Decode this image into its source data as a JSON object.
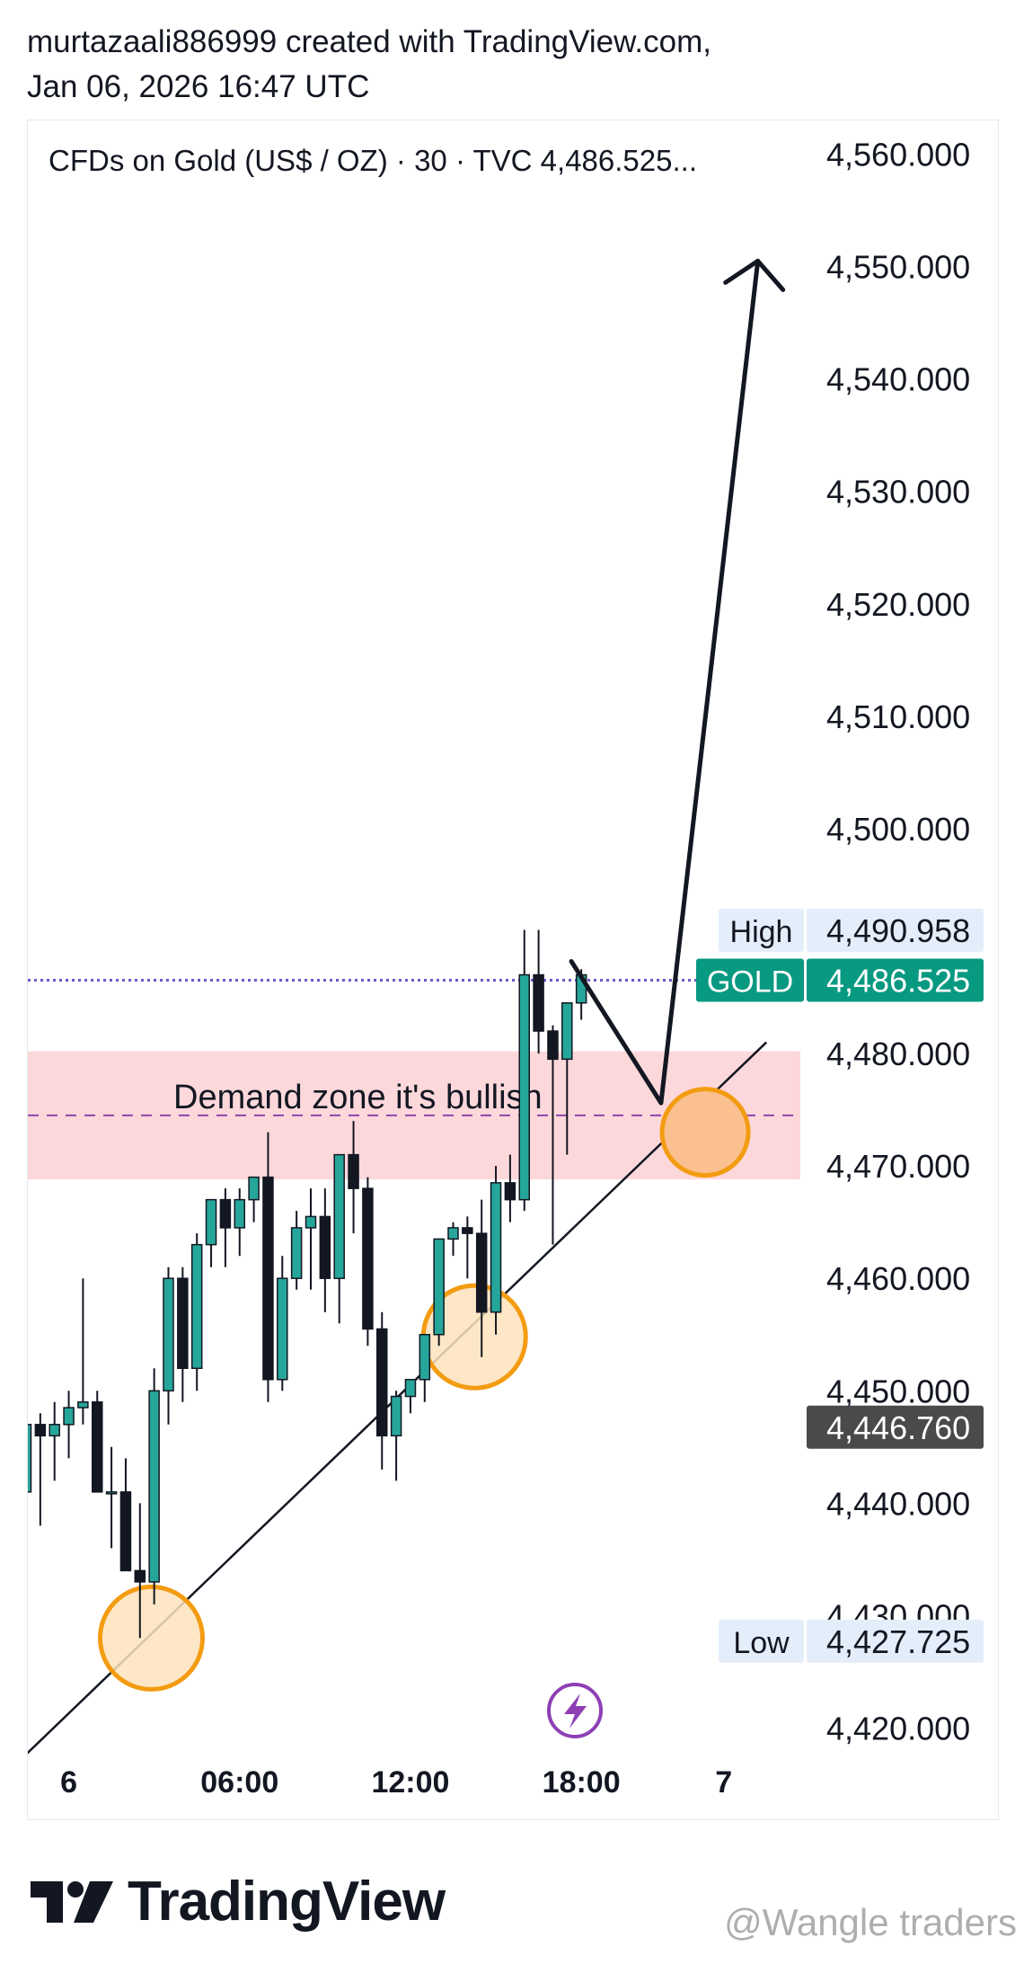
{
  "header": {
    "line1": "murtazaali886999 created with TradingView.com,",
    "line2": "Jan 06, 2026 16:47 UTC"
  },
  "chart_data": {
    "type": "candlestick",
    "title": "CFDs on Gold (US$ / OZ) · 30 · TVC  4,486.525...",
    "y_ticks": [
      "4,560.000",
      "4,550.000",
      "4,540.000",
      "4,530.000",
      "4,520.000",
      "4,510.000",
      "4,500.000",
      "4,480.000",
      "4,470.000",
      "4,460.000",
      "4,450.000",
      "4,440.000",
      "4,430.000",
      "4,420.000"
    ],
    "y_tick_values": [
      4560,
      4550,
      4540,
      4530,
      4520,
      4510,
      4500,
      4480,
      4470,
      4460,
      4450,
      4440,
      4430,
      4420
    ],
    "ylim": [
      4417,
      4563
    ],
    "x_ticks": [
      {
        "label": "6",
        "bar": 3
      },
      {
        "label": "06:00",
        "bar": 15
      },
      {
        "label": "12:00",
        "bar": 27
      },
      {
        "label": "18:00",
        "bar": 39
      },
      {
        "label": "7",
        "bar": 49
      }
    ],
    "price_labels": [
      {
        "name": "High",
        "value": "4,490.958",
        "level": 4490.958,
        "style": "light"
      },
      {
        "name": "GOLD",
        "value": "4,486.525",
        "level": 4486.525,
        "style": "green"
      },
      {
        "name": "",
        "value": "4,446.760",
        "level": 4446.76,
        "style": "gray"
      },
      {
        "name": "Low",
        "value": "4,427.725",
        "level": 4427.725,
        "style": "light"
      }
    ],
    "demand_zone": {
      "label": "Demand zone it's bullish",
      "top": 4480.2,
      "bottom": 4468.8,
      "mid": 4474.5
    },
    "last_price_level": 4486.525,
    "trendline": {
      "from": [
        -3,
        4414
      ],
      "to": [
        52,
        4481
      ]
    },
    "projection_path": [
      [
        38.3,
        4488.2
      ],
      [
        44.6,
        4475.6
      ],
      [
        51.4,
        4550.5
      ]
    ],
    "circles": [
      {
        "x": 8.8,
        "y": 4428.0,
        "style": "light"
      },
      {
        "x": 31.5,
        "y": 4454.8,
        "style": "light"
      },
      {
        "x": 47.7,
        "y": 4473.0,
        "style": "strong"
      }
    ],
    "candles": [
      {
        "o": 4441,
        "h": 4448,
        "l": 4439,
        "c": 4447
      },
      {
        "o": 4447,
        "h": 4448,
        "l": 4438,
        "c": 4446
      },
      {
        "o": 4446,
        "h": 4449,
        "l": 4442,
        "c": 4447
      },
      {
        "o": 4447,
        "h": 4450,
        "l": 4444,
        "c": 4448.5
      },
      {
        "o": 4448.5,
        "h": 4460,
        "l": 4447,
        "c": 4449
      },
      {
        "o": 4449,
        "h": 4450,
        "l": 4441,
        "c": 4441
      },
      {
        "o": 4441,
        "h": 4445,
        "l": 4436,
        "c": 4441
      },
      {
        "o": 4441,
        "h": 4444,
        "l": 4434,
        "c": 4434
      },
      {
        "o": 4434,
        "h": 4440,
        "l": 4428,
        "c": 4433
      },
      {
        "o": 4433,
        "h": 4452,
        "l": 4431,
        "c": 4450
      },
      {
        "o": 4450,
        "h": 4461,
        "l": 4447,
        "c": 4460
      },
      {
        "o": 4460,
        "h": 4461,
        "l": 4449,
        "c": 4452
      },
      {
        "o": 4452,
        "h": 4464,
        "l": 4450,
        "c": 4463
      },
      {
        "o": 4463,
        "h": 4467,
        "l": 4461,
        "c": 4467
      },
      {
        "o": 4467,
        "h": 4468,
        "l": 4461,
        "c": 4464.5
      },
      {
        "o": 4464.5,
        "h": 4468,
        "l": 4462,
        "c": 4467
      },
      {
        "o": 4467,
        "h": 4469,
        "l": 4465,
        "c": 4469
      },
      {
        "o": 4469,
        "h": 4473,
        "l": 4449,
        "c": 4451
      },
      {
        "o": 4451,
        "h": 4462,
        "l": 4450,
        "c": 4460
      },
      {
        "o": 4460,
        "h": 4466,
        "l": 4459,
        "c": 4464.5
      },
      {
        "o": 4464.5,
        "h": 4468,
        "l": 4459,
        "c": 4465.5
      },
      {
        "o": 4465.5,
        "h": 4468,
        "l": 4457,
        "c": 4460
      },
      {
        "o": 4460,
        "h": 4471,
        "l": 4456,
        "c": 4471
      },
      {
        "o": 4471,
        "h": 4474,
        "l": 4464,
        "c": 4468
      },
      {
        "o": 4468,
        "h": 4469,
        "l": 4454,
        "c": 4455.5
      },
      {
        "o": 4455.5,
        "h": 4457,
        "l": 4443,
        "c": 4446
      },
      {
        "o": 4446,
        "h": 4450,
        "l": 4442,
        "c": 4449.5
      },
      {
        "o": 4449.5,
        "h": 4451,
        "l": 4448,
        "c": 4451
      },
      {
        "o": 4451,
        "h": 4455,
        "l": 4449,
        "c": 4455
      },
      {
        "o": 4455,
        "h": 4463.5,
        "l": 4454,
        "c": 4463.5
      },
      {
        "o": 4463.5,
        "h": 4465,
        "l": 4462,
        "c": 4464.5
      },
      {
        "o": 4464.5,
        "h": 4465.5,
        "l": 4460,
        "c": 4464
      },
      {
        "o": 4464,
        "h": 4467,
        "l": 4453,
        "c": 4457
      },
      {
        "o": 4457,
        "h": 4470,
        "l": 4455,
        "c": 4468.5
      },
      {
        "o": 4468.5,
        "h": 4471,
        "l": 4465,
        "c": 4467
      },
      {
        "o": 4467,
        "h": 4491,
        "l": 4466,
        "c": 4487
      },
      {
        "o": 4487,
        "h": 4491,
        "l": 4480,
        "c": 4482
      },
      {
        "o": 4482,
        "h": 4482.5,
        "l": 4463,
        "c": 4479.5
      },
      {
        "o": 4479.5,
        "h": 4484,
        "l": 4471,
        "c": 4484.5
      },
      {
        "o": 4484.5,
        "h": 4487.5,
        "l": 4483,
        "c": 4487
      }
    ]
  },
  "colors": {
    "bull": "#26a69a",
    "bear": "#131722",
    "zone": "#fdd8db",
    "zone_line": "#8e44ad",
    "price_line": "#6a5acd",
    "circle_stroke": "#f39c12",
    "circle_fill_light": "#fde3bd",
    "circle_fill_strong": "#fbc08f",
    "gold_badge": "#089981",
    "gray_badge": "#4a4a4a",
    "light_badge": "#e4eefa",
    "bolt": "#8e3fb5"
  },
  "footer": {
    "brand": "TradingView",
    "watermark": "@Wangle traders"
  },
  "icons": [
    "tradingview-logo-icon",
    "lightning-bolt-icon"
  ]
}
